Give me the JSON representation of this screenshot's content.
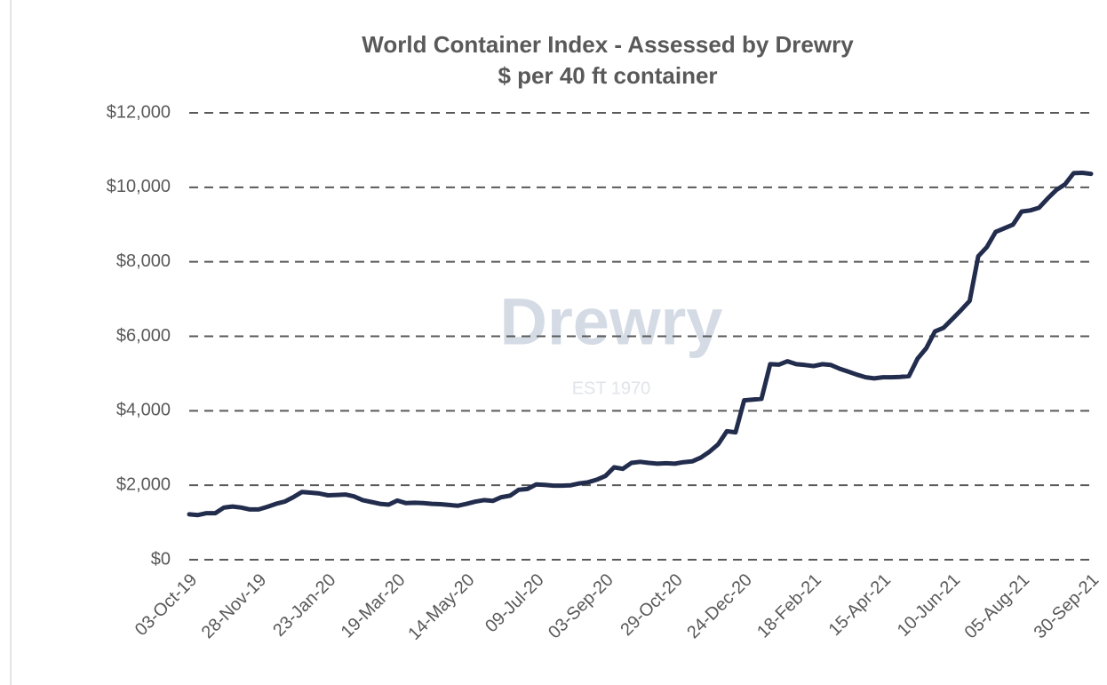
{
  "chart_data": {
    "type": "line",
    "title": "World Container Index - Assessed by Drewry",
    "subtitle": "$ per 40 ft container",
    "watermark": {
      "name": "Drewry",
      "est": "EST 1970"
    },
    "categories": [
      "03-Oct-19",
      null,
      null,
      null,
      null,
      null,
      null,
      null,
      "28-Nov-19",
      null,
      null,
      null,
      null,
      null,
      null,
      null,
      "23-Jan-20",
      null,
      null,
      null,
      null,
      null,
      null,
      null,
      "19-Mar-20",
      null,
      null,
      null,
      null,
      null,
      null,
      null,
      "14-May-20",
      null,
      null,
      null,
      null,
      null,
      null,
      null,
      "09-Jul-20",
      null,
      null,
      null,
      null,
      null,
      null,
      null,
      "03-Sep-20",
      null,
      null,
      null,
      null,
      null,
      null,
      null,
      "29-Oct-20",
      null,
      null,
      null,
      null,
      null,
      null,
      null,
      "24-Dec-20",
      null,
      null,
      null,
      null,
      null,
      null,
      null,
      "18-Feb-21",
      null,
      null,
      null,
      null,
      null,
      null,
      null,
      "15-Apr-21",
      null,
      null,
      null,
      null,
      null,
      null,
      null,
      "10-Jun-21",
      null,
      null,
      null,
      null,
      null,
      null,
      null,
      "05-Aug-21",
      null,
      null,
      null,
      null,
      null,
      null,
      null,
      "30-Sep-21"
    ],
    "series": [
      {
        "color": "#222c4d",
        "values": [
          1220,
          1200,
          1250,
          1250,
          1400,
          1430,
          1400,
          1350,
          1350,
          1420,
          1500,
          1560,
          1680,
          1820,
          1800,
          1780,
          1730,
          1740,
          1750,
          1700,
          1600,
          1550,
          1500,
          1480,
          1590,
          1520,
          1530,
          1520,
          1500,
          1490,
          1470,
          1450,
          1500,
          1560,
          1600,
          1580,
          1680,
          1720,
          1880,
          1900,
          2020,
          2010,
          1990,
          1990,
          2000,
          2050,
          2080,
          2150,
          2250,
          2480,
          2440,
          2600,
          2630,
          2600,
          2580,
          2590,
          2580,
          2620,
          2640,
          2740,
          2900,
          3100,
          3450,
          3420,
          4280,
          4300,
          4320,
          5250,
          5240,
          5330,
          5250,
          5230,
          5200,
          5250,
          5230,
          5130,
          5050,
          4970,
          4900,
          4870,
          4900,
          4900,
          4910,
          4930,
          5400,
          5680,
          6130,
          6230,
          6460,
          6700,
          6950,
          8150,
          8400,
          8800,
          8900,
          9000,
          9350,
          9380,
          9450,
          9700,
          9930,
          10080,
          10380,
          10390,
          10360
        ]
      }
    ],
    "ylim": [
      0,
      12000
    ],
    "yticks": [
      {
        "value": 0,
        "label": "$0"
      },
      {
        "value": 2000,
        "label": "$2,000"
      },
      {
        "value": 4000,
        "label": "$4,000"
      },
      {
        "value": 6000,
        "label": "$6,000"
      },
      {
        "value": 8000,
        "label": "$8,000"
      },
      {
        "value": 10000,
        "label": "$10,000"
      },
      {
        "value": 12000,
        "label": "$12,000"
      }
    ],
    "grid": true
  }
}
